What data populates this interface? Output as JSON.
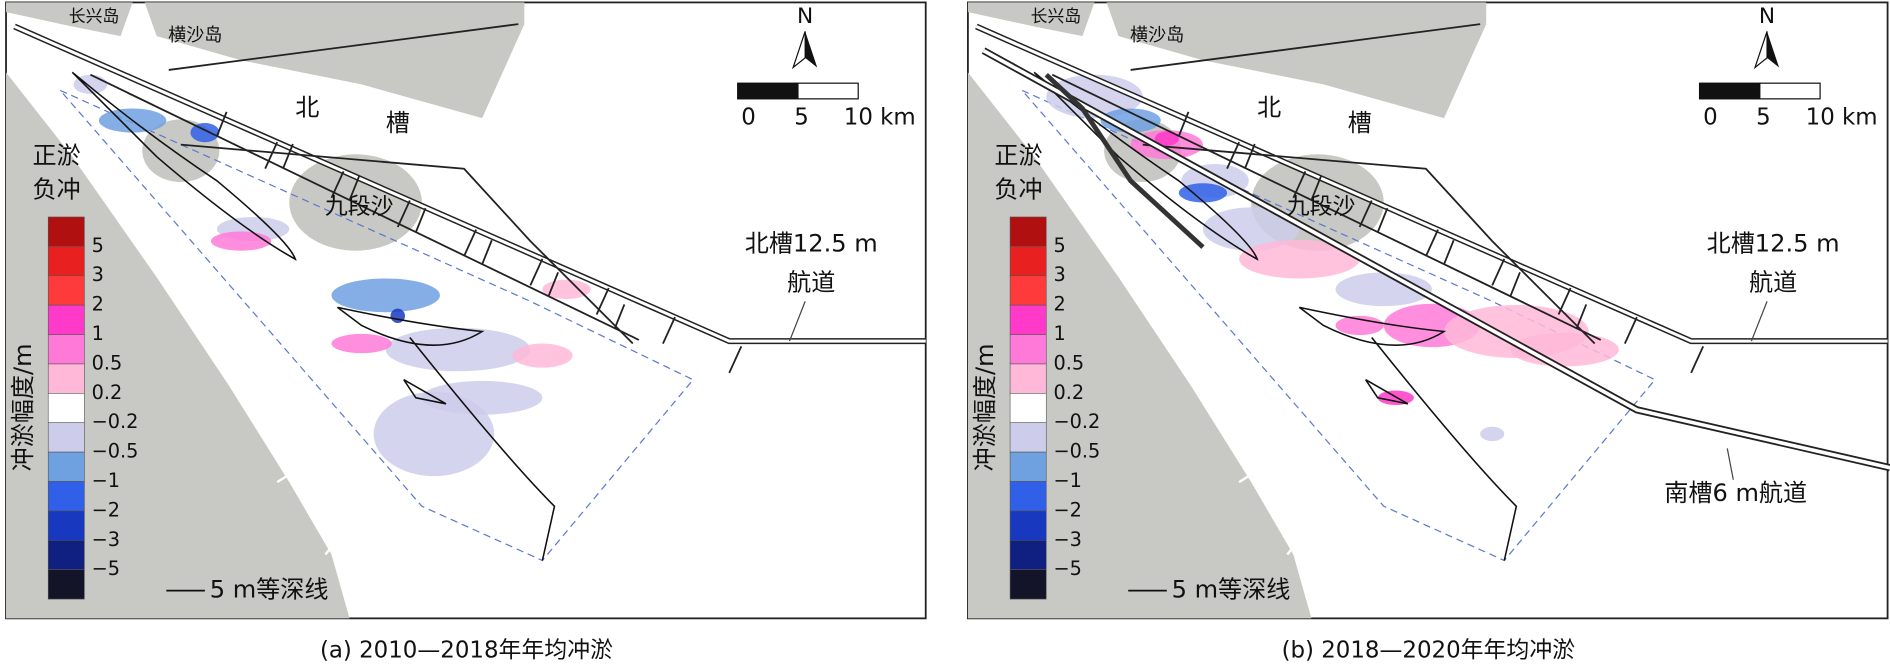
{
  "panels": [
    {
      "caption": "(a) 2010—2018年年均冲淤",
      "labels": [
        "长兴岛",
        "横沙岛",
        "北",
        "槽",
        "九段沙",
        "北槽12.5 m",
        "航道"
      ]
    },
    {
      "caption": "(b) 2018—2020年年均冲淤",
      "labels": [
        "长兴岛",
        "横沙岛",
        "北",
        "槽",
        "九段沙",
        "北槽12.5 m",
        "航道",
        "南槽6 m航道"
      ]
    }
  ],
  "legend": {
    "title": "冲淤幅度/m",
    "positive": "正淤",
    "negative": "负冲",
    "ticks": [
      "5",
      "3",
      "2",
      "1",
      "0.5",
      "0.2",
      "−0.2",
      "−0.5",
      "−1",
      "−2",
      "−3",
      "−5"
    ],
    "colors": [
      "#b01010",
      "#e82020",
      "#ff3a3a",
      "#ff3ac8",
      "#ff7ad8",
      "#ffb8d8",
      "#ffffff",
      "#cdcdeb",
      "#6fa0e0",
      "#3060e8",
      "#1838c0",
      "#102080",
      "#141428"
    ],
    "contour": "5 m等深线"
  },
  "north": "N",
  "scale": [
    "0",
    "5",
    "10 km"
  ]
}
